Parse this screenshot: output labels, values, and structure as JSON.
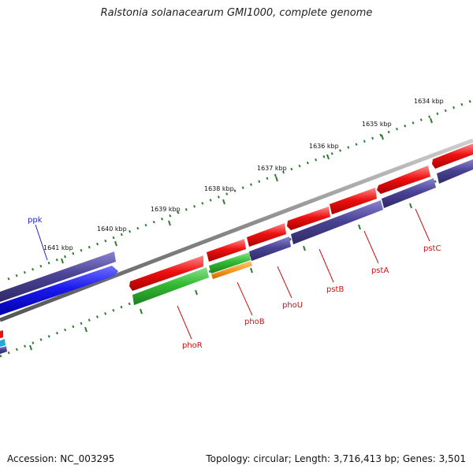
{
  "title": "Ralstonia solanacearum GMI1000, complete genome",
  "footer": {
    "accession": "Accession: NC_003295",
    "summary": "Topology: circular; Length: 3,716,413 bp; Genes: 3,501"
  },
  "ruler_labels": [
    "1634 kbp",
    "1635 kbp",
    "1636 kbp",
    "1637 kbp",
    "1638 kbp",
    "1639 kbp",
    "1640 kbp",
    "1641 kbp"
  ],
  "gene_labels": {
    "ppk": "ppk",
    "phoR": "phoR",
    "phoB": "phoB",
    "phoU": "phoU",
    "pstB": "pstB",
    "pstA": "pstA",
    "pstC": "pstC"
  },
  "colors": {
    "forward_cds": "#ee1111",
    "reverse_cds": "#4b4396",
    "green_feature": "#33bb33",
    "orange_feature": "#ff9922",
    "blue_feature": "#1a1aee",
    "cyan_feature": "#22aadd",
    "backbone": "#888888",
    "ruler_ticks": "#2e7d32",
    "label_blue": "#2222cc",
    "label_red": "#cc1111"
  }
}
